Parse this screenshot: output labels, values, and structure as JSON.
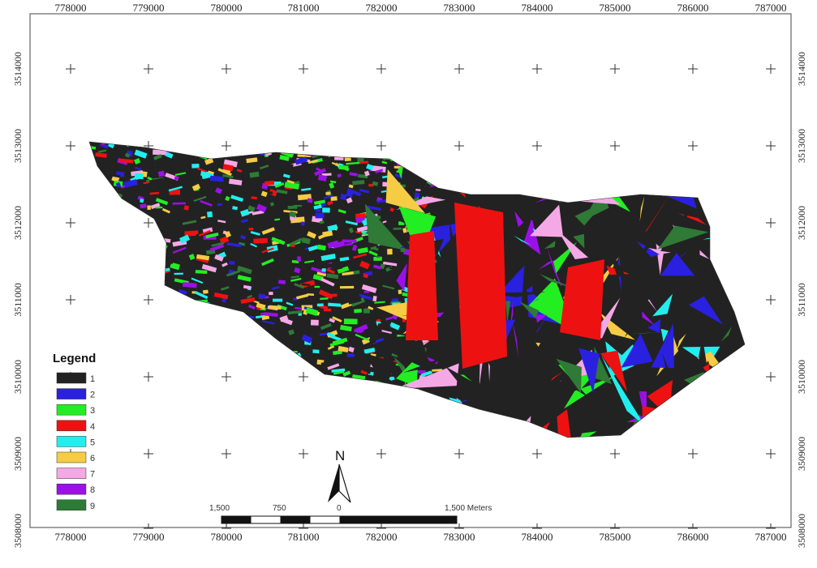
{
  "map": {
    "x_ticks": [
      "778000",
      "779000",
      "780000",
      "781000",
      "782000",
      "783000",
      "784000",
      "785000",
      "786000",
      "787000"
    ],
    "y_ticks": [
      "3514000",
      "3513000",
      "3512000",
      "3511000",
      "3510000",
      "3509000",
      "3508000"
    ],
    "legend": {
      "title": "Legend",
      "classes": [
        {
          "label": "1",
          "color": "#222222"
        },
        {
          "label": "2",
          "color": "#2a20e0"
        },
        {
          "label": "3",
          "color": "#22ee22"
        },
        {
          "label": "4",
          "color": "#ee1111"
        },
        {
          "label": "5",
          "color": "#22eeee"
        },
        {
          "label": "6",
          "color": "#f5cc44"
        },
        {
          "label": "7",
          "color": "#f5a8e6"
        },
        {
          "label": "8",
          "color": "#9b10e8"
        },
        {
          "label": "9",
          "color": "#2e7a36"
        }
      ]
    },
    "north_arrow": {
      "label": "N"
    },
    "scale_bar": {
      "labels": [
        "1,500",
        "750",
        "0",
        "1,500 Meters"
      ]
    }
  }
}
